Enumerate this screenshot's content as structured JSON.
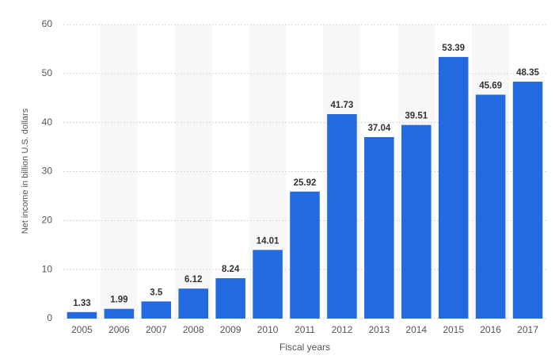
{
  "chart_data": {
    "type": "bar",
    "x_label": "Fiscal years",
    "y_label": "Net income in billion U.S. dollars",
    "categories": [
      "2005",
      "2006",
      "2007",
      "2008",
      "2009",
      "2010",
      "2011",
      "2012",
      "2013",
      "2014",
      "2015",
      "2016",
      "2017"
    ],
    "values": [
      1.33,
      1.99,
      3.5,
      6.12,
      8.24,
      14.01,
      25.92,
      41.73,
      37.04,
      39.51,
      53.39,
      45.69,
      48.35
    ],
    "color": "#2369e0",
    "ylim": [
      0,
      60
    ],
    "yticks": [
      0,
      10,
      20,
      30,
      40,
      50,
      60
    ],
    "grid": true
  }
}
